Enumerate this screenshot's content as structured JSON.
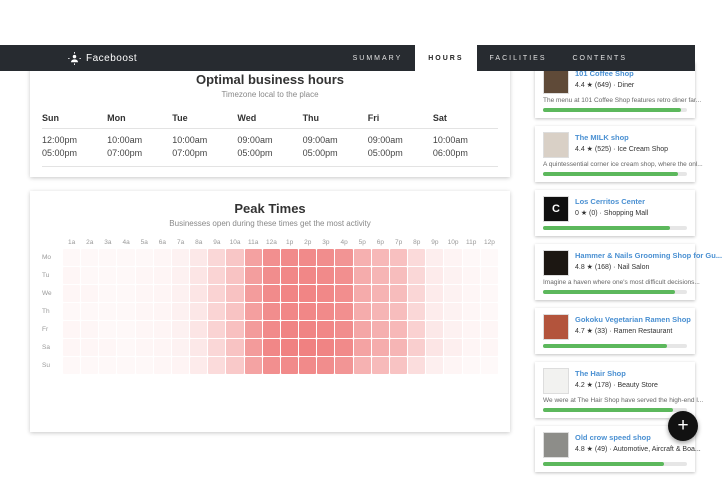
{
  "navbar": {
    "brand": "Faceboost",
    "items": [
      {
        "label": "SUMMARY",
        "active": false
      },
      {
        "label": "HOURS",
        "active": true
      },
      {
        "label": "FACILITIES",
        "active": false
      },
      {
        "label": "CONTENTS",
        "active": false
      }
    ]
  },
  "optimal_hours": {
    "title": "Optimal business hours",
    "subtitle": "Timezone local to the place",
    "days": [
      {
        "day": "Sun",
        "open": "12:00pm",
        "close": "05:00pm"
      },
      {
        "day": "Mon",
        "open": "10:00am",
        "close": "07:00pm"
      },
      {
        "day": "Tue",
        "open": "10:00am",
        "close": "07:00pm"
      },
      {
        "day": "Wed",
        "open": "09:00am",
        "close": "05:00pm"
      },
      {
        "day": "Thu",
        "open": "09:00am",
        "close": "05:00pm"
      },
      {
        "day": "Fri",
        "open": "09:00am",
        "close": "05:00pm"
      },
      {
        "day": "Sat",
        "open": "10:00am",
        "close": "06:00pm"
      }
    ]
  },
  "peak_times": {
    "title": "Peak Times",
    "subtitle": "Businesses open during these times get the most activity",
    "chart_data": {
      "type": "heatmap",
      "x_labels": [
        "1a",
        "2a",
        "3a",
        "4a",
        "5a",
        "6a",
        "7a",
        "8a",
        "9a",
        "10a",
        "11a",
        "12a",
        "1p",
        "2p",
        "3p",
        "4p",
        "5p",
        "6p",
        "7p",
        "8p",
        "9p",
        "10p",
        "11p",
        "12p"
      ],
      "y_labels": [
        "Mo",
        "Tu",
        "We",
        "Th",
        "Fr",
        "Sa",
        "Su"
      ],
      "color_low": "#ffffff",
      "color_high": "#ee7070",
      "values": [
        [
          0.05,
          0.05,
          0.05,
          0.05,
          0.05,
          0.06,
          0.09,
          0.16,
          0.28,
          0.4,
          0.66,
          0.78,
          0.82,
          0.82,
          0.8,
          0.75,
          0.55,
          0.5,
          0.44,
          0.26,
          0.12,
          0.08,
          0.05,
          0.04
        ],
        [
          0.06,
          0.05,
          0.05,
          0.05,
          0.06,
          0.07,
          0.1,
          0.18,
          0.3,
          0.42,
          0.68,
          0.8,
          0.84,
          0.84,
          0.82,
          0.78,
          0.58,
          0.52,
          0.46,
          0.28,
          0.14,
          0.09,
          0.06,
          0.05
        ],
        [
          0.06,
          0.06,
          0.05,
          0.05,
          0.06,
          0.07,
          0.1,
          0.18,
          0.31,
          0.43,
          0.69,
          0.81,
          0.85,
          0.85,
          0.83,
          0.79,
          0.59,
          0.53,
          0.47,
          0.29,
          0.14,
          0.09,
          0.06,
          0.05
        ],
        [
          0.05,
          0.05,
          0.05,
          0.05,
          0.06,
          0.07,
          0.1,
          0.17,
          0.3,
          0.42,
          0.67,
          0.8,
          0.84,
          0.84,
          0.82,
          0.78,
          0.58,
          0.52,
          0.46,
          0.28,
          0.13,
          0.09,
          0.06,
          0.05
        ],
        [
          0.06,
          0.06,
          0.05,
          0.05,
          0.06,
          0.07,
          0.1,
          0.18,
          0.31,
          0.44,
          0.7,
          0.82,
          0.86,
          0.86,
          0.84,
          0.8,
          0.62,
          0.56,
          0.5,
          0.32,
          0.16,
          0.1,
          0.07,
          0.06
        ],
        [
          0.06,
          0.06,
          0.06,
          0.05,
          0.06,
          0.07,
          0.09,
          0.16,
          0.28,
          0.42,
          0.7,
          0.84,
          0.88,
          0.88,
          0.86,
          0.82,
          0.64,
          0.58,
          0.52,
          0.34,
          0.18,
          0.11,
          0.07,
          0.06
        ],
        [
          0.05,
          0.05,
          0.05,
          0.05,
          0.05,
          0.06,
          0.08,
          0.14,
          0.25,
          0.38,
          0.64,
          0.78,
          0.82,
          0.82,
          0.8,
          0.74,
          0.54,
          0.48,
          0.42,
          0.24,
          0.11,
          0.07,
          0.05,
          0.04
        ]
      ]
    }
  },
  "sidebar": {
    "rating_star": "★",
    "separator": "·",
    "places": [
      {
        "name": "101 Coffee Shop",
        "rating": "4.4",
        "reviews": "649",
        "category": "Diner",
        "description": "The menu at 101 Coffee Shop features retro diner far...",
        "score": 96,
        "thumb": {
          "color": "#5f4a38",
          "text": "",
          "text_color": "#ffffff"
        }
      },
      {
        "name": "The MILK shop",
        "rating": "4.4",
        "reviews": "525",
        "category": "Ice Cream Shop",
        "description": "A quintessential corner ice cream shop, where the onl...",
        "score": 94,
        "thumb": {
          "color": "#d9d0c6",
          "text": "",
          "text_color": "#ffffff"
        }
      },
      {
        "name": "Los Cerritos Center",
        "rating": "0",
        "reviews": "0",
        "category": "Shopping Mall",
        "description": "",
        "score": 88,
        "thumb": {
          "color": "#101010",
          "text": "C",
          "text_color": "#ffffff"
        }
      },
      {
        "name": "Hammer & Nails Grooming Shop for Gu...",
        "rating": "4.8",
        "reviews": "168",
        "category": "Nail Salon",
        "description": "Imagine a haven where one's most difficult decisions...",
        "score": 92,
        "thumb": {
          "color": "#1c1712",
          "text": "",
          "text_color": "#caa24a"
        }
      },
      {
        "name": "Gokoku Vegetarian Ramen Shop",
        "rating": "4.7",
        "reviews": "33",
        "category": "Ramen Restaurant",
        "description": "",
        "score": 86,
        "thumb": {
          "color": "#b3543c",
          "text": "",
          "text_color": "#ffffff"
        }
      },
      {
        "name": "The Hair Shop",
        "rating": "4.2",
        "reviews": "178",
        "category": "Beauty Store",
        "description": "We were at The Hair Shop have served the high-end l...",
        "score": 90,
        "thumb": {
          "color": "#f2f2f0",
          "text": "",
          "text_color": "#888888"
        }
      },
      {
        "name": "Old crow speed shop",
        "rating": "4.8",
        "reviews": "49",
        "category": "Automotive, Aircraft & Boa...",
        "description": "",
        "score": 84,
        "thumb": {
          "color": "#8d8d89",
          "text": "",
          "text_color": "#ffffff"
        }
      }
    ]
  },
  "fab": {
    "label": "+"
  }
}
